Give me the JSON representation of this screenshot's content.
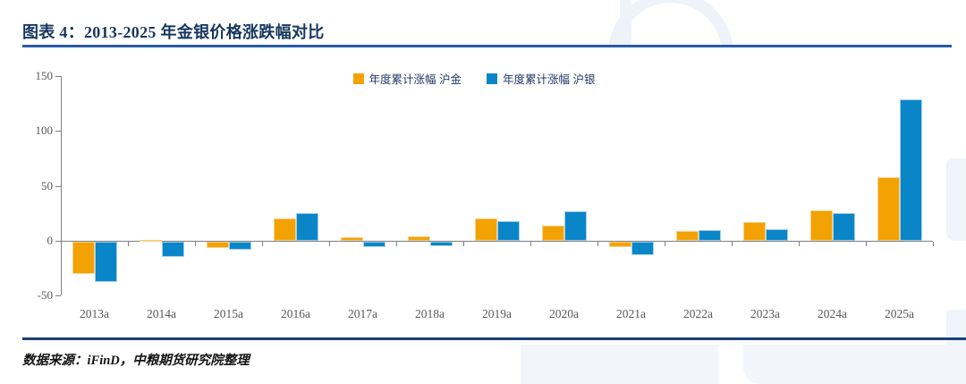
{
  "header": {
    "title": "图表 4：2013-2025 年金银价格涨跌幅对比"
  },
  "legend": [
    {
      "label": "年度累计涨幅 沪金",
      "color": "#f2a202"
    },
    {
      "label": "年度累计涨幅 沪银",
      "color": "#0a86c8"
    }
  ],
  "footer": {
    "source": "数据来源：iFinD，中粮期货研究院整理"
  },
  "colors": {
    "gold_bar": "#f2a202",
    "silver_bar": "#0a86c8",
    "title_navy": "#17375e",
    "rule_blue_top": "#2a5ca8",
    "rule_blue_bottom": "#1c4173",
    "axis_gray": "#7f7f7f",
    "tick_text_gray": "#595959"
  },
  "chart_data": {
    "type": "bar",
    "title": "2013-2025 年金银价格涨跌幅对比",
    "categories": [
      "2013a",
      "2014a",
      "2015a",
      "2016a",
      "2017a",
      "2018a",
      "2019a",
      "2020a",
      "2021a",
      "2022a",
      "2023a",
      "2024a",
      "2025a"
    ],
    "series": [
      {
        "name": "年度累计涨幅 沪金",
        "color": "#f2a202",
        "values": [
          -29,
          1,
          -6,
          20,
          3,
          4,
          20,
          14,
          -5,
          9,
          17,
          28,
          58
        ]
      },
      {
        "name": "年度累计涨幅 沪银",
        "color": "#0a86c8",
        "values": [
          -37,
          -14,
          -7,
          25,
          -5,
          -4,
          18,
          27,
          -12,
          10,
          11,
          25,
          129
        ]
      }
    ],
    "xlabel": "",
    "ylabel": "",
    "ylim": [
      -50,
      150
    ],
    "yticks": [
      150,
      100,
      50,
      0,
      -50
    ],
    "grid": false,
    "legend_position": "top-center"
  }
}
